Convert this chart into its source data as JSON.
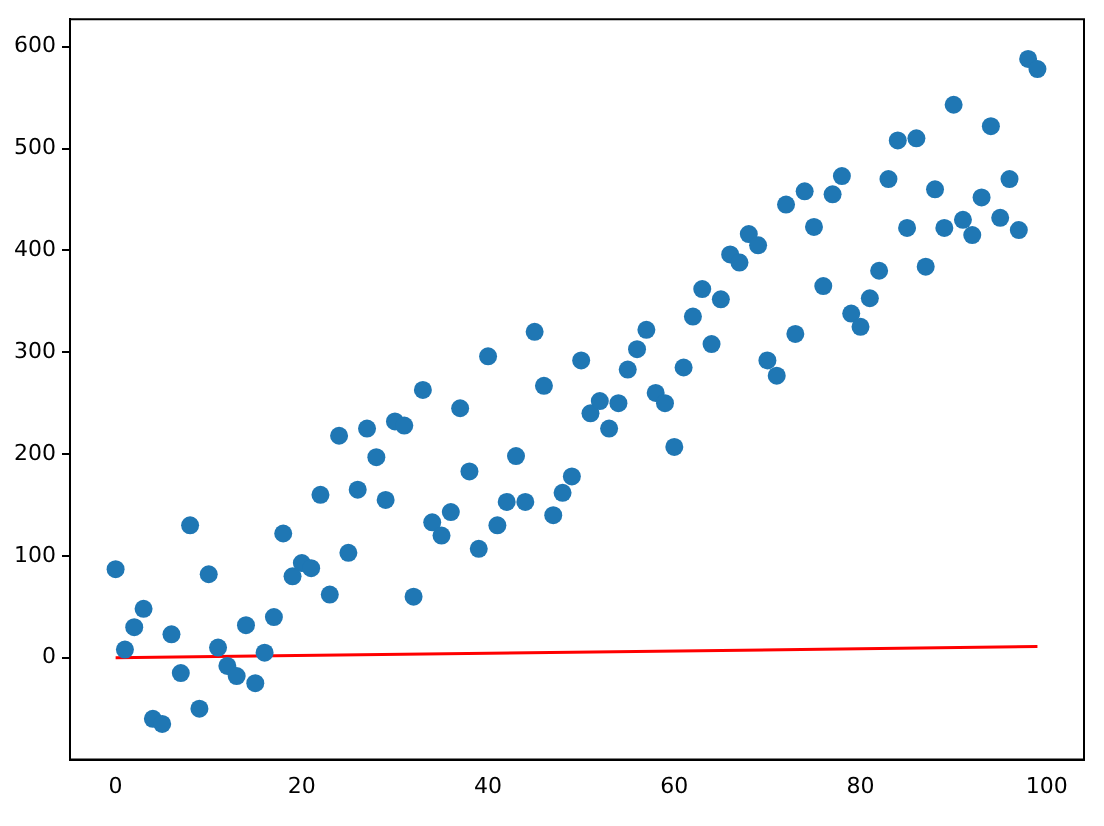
{
  "chart_data": {
    "type": "scatter",
    "x": [
      0,
      1,
      2,
      3,
      4,
      5,
      6,
      7,
      8,
      9,
      10,
      11,
      12,
      13,
      14,
      15,
      16,
      17,
      18,
      19,
      20,
      21,
      22,
      23,
      24,
      25,
      26,
      27,
      28,
      29,
      30,
      31,
      32,
      33,
      34,
      35,
      36,
      37,
      38,
      39,
      40,
      41,
      42,
      43,
      44,
      45,
      46,
      47,
      48,
      49,
      50,
      51,
      52,
      53,
      54,
      55,
      56,
      57,
      58,
      59,
      60,
      61,
      62,
      63,
      64,
      65,
      66,
      67,
      68,
      69,
      70,
      71,
      72,
      73,
      74,
      75,
      76,
      77,
      78,
      79,
      80,
      81,
      82,
      83,
      84,
      85,
      86,
      87,
      88,
      89,
      90,
      91,
      92,
      93,
      94,
      95,
      96,
      97,
      98,
      99
    ],
    "series": [
      {
        "color": "#1f77b4",
        "marker": "circle",
        "values": [
          87,
          8,
          30,
          48,
          -60,
          -65,
          23,
          -15,
          130,
          -50,
          82,
          10,
          -8,
          -18,
          32,
          -25,
          5,
          40,
          122,
          80,
          93,
          88,
          160,
          62,
          218,
          103,
          165,
          225,
          197,
          155,
          232,
          228,
          60,
          263,
          133,
          120,
          143,
          245,
          183,
          107,
          296,
          130,
          153,
          198,
          153,
          320,
          267,
          140,
          162,
          178,
          292,
          240,
          252,
          225,
          250,
          283,
          303,
          322,
          260,
          250,
          207,
          285,
          335,
          362,
          308,
          352,
          396,
          388,
          416,
          405,
          292,
          277,
          445,
          318,
          458,
          423,
          365,
          455,
          473,
          338,
          325,
          353,
          380,
          470,
          508,
          422,
          510,
          384,
          460,
          422,
          543,
          430,
          415,
          452,
          522,
          432,
          470,
          420,
          588,
          578
        ]
      },
      {
        "type": "line",
        "color": "#ff0000",
        "marker": "none",
        "x": [
          0,
          99
        ],
        "values": [
          0,
          11
        ]
      }
    ],
    "xlim": [
      -4.9,
      104
    ],
    "ylim": [
      -100,
      627
    ],
    "xticks": [
      0,
      20,
      40,
      60,
      80,
      100
    ],
    "yticks": [
      0,
      100,
      200,
      300,
      400,
      500,
      600
    ],
    "grid": false,
    "legend": false
  }
}
